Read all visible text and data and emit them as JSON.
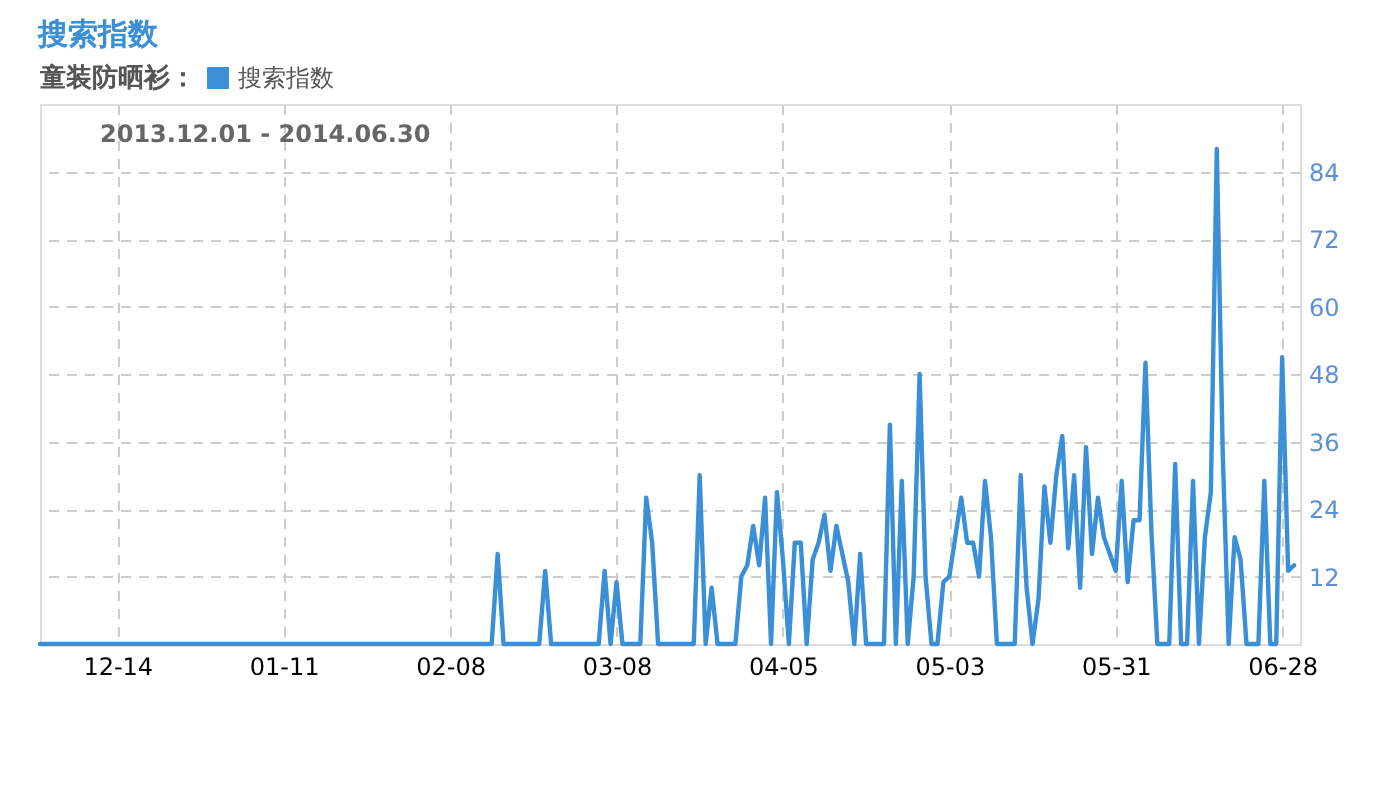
{
  "chart_data": {
    "type": "line",
    "title": "搜索指数",
    "legend_title": "童装防晒衫：",
    "legend": "top left",
    "annotations": [
      "2013.12.01 - 2014.06.30"
    ],
    "x": [
      "2013-12-01",
      "2014-02-15",
      "2014-02-16",
      "2014-02-17",
      "2014-02-23",
      "2014-02-24",
      "2014-02-25",
      "2014-03-05",
      "2014-03-06",
      "2014-03-07",
      "2014-03-08",
      "2014-03-09",
      "2014-03-12",
      "2014-03-13",
      "2014-03-14",
      "2014-03-15",
      "2014-03-21",
      "2014-03-22",
      "2014-03-23",
      "2014-03-24",
      "2014-03-25",
      "2014-03-28",
      "2014-03-29",
      "2014-03-30",
      "2014-03-31",
      "2014-04-01",
      "2014-04-02",
      "2014-04-03",
      "2014-04-04",
      "2014-04-05",
      "2014-04-06",
      "2014-04-07",
      "2014-04-08",
      "2014-04-09",
      "2014-04-10",
      "2014-04-11",
      "2014-04-12",
      "2014-04-13",
      "2014-04-14",
      "2014-04-15",
      "2014-04-16",
      "2014-04-17",
      "2014-04-18",
      "2014-04-19",
      "2014-04-22",
      "2014-04-23",
      "2014-04-24",
      "2014-04-25",
      "2014-04-26",
      "2014-04-27",
      "2014-04-28",
      "2014-04-29",
      "2014-04-30",
      "2014-05-01",
      "2014-05-02",
      "2014-05-03",
      "2014-05-04",
      "2014-05-05",
      "2014-05-06",
      "2014-05-07",
      "2014-05-08",
      "2014-05-09",
      "2014-05-10",
      "2014-05-11",
      "2014-05-14",
      "2014-05-15",
      "2014-05-16",
      "2014-05-17",
      "2014-05-18",
      "2014-05-19",
      "2014-05-20",
      "2014-05-21",
      "2014-05-22",
      "2014-05-23",
      "2014-05-24",
      "2014-05-25",
      "2014-05-26",
      "2014-05-27",
      "2014-05-28",
      "2014-05-29",
      "2014-05-30",
      "2014-05-31",
      "2014-06-01",
      "2014-06-02",
      "2014-06-03",
      "2014-06-04",
      "2014-06-05",
      "2014-06-06",
      "2014-06-07",
      "2014-06-09",
      "2014-06-10",
      "2014-06-11",
      "2014-06-12",
      "2014-06-13",
      "2014-06-14",
      "2014-06-15",
      "2014-06-16",
      "2014-06-17",
      "2014-06-18",
      "2014-06-19",
      "2014-06-20",
      "2014-06-21",
      "2014-06-22",
      "2014-06-24",
      "2014-06-25",
      "2014-06-26",
      "2014-06-27",
      "2014-06-28",
      "2014-06-29",
      "2014-06-30"
    ],
    "series": [
      {
        "name": "搜索指数",
        "color": "#3a8fd6",
        "values": [
          0,
          0,
          16,
          0,
          0,
          13,
          0,
          0,
          13,
          0,
          11,
          0,
          0,
          26,
          18,
          0,
          0,
          30,
          0,
          10,
          0,
          0,
          12,
          14,
          21,
          14,
          26,
          0,
          27,
          15,
          0,
          18,
          18,
          0,
          15,
          18,
          23,
          13,
          21,
          16,
          11,
          0,
          16,
          0,
          0,
          39,
          0,
          29,
          0,
          12,
          48,
          12,
          0,
          0,
          11,
          12,
          19,
          26,
          18,
          18,
          12,
          29,
          19,
          0,
          0,
          30,
          10,
          0,
          8,
          28,
          18,
          30,
          37,
          17,
          30,
          10,
          35,
          16,
          26,
          19,
          16,
          13,
          29,
          11,
          22,
          22,
          50,
          20,
          0,
          0,
          32,
          0,
          0,
          29,
          0,
          19,
          27,
          88,
          34,
          0,
          19,
          15,
          0,
          0,
          29,
          0,
          0,
          51,
          13,
          14
        ]
      }
    ],
    "xlim": [
      "2013-12-01",
      "2014-07-01"
    ],
    "ylim": [
      0,
      96
    ],
    "xticks": [
      {
        "value": "2013-12-14",
        "label": "12-14"
      },
      {
        "value": "2014-01-11",
        "label": "01-11"
      },
      {
        "value": "2014-02-08",
        "label": "02-08"
      },
      {
        "value": "2014-03-08",
        "label": "03-08"
      },
      {
        "value": "2014-04-05",
        "label": "04-05"
      },
      {
        "value": "2014-05-03",
        "label": "05-03"
      },
      {
        "value": "2014-05-31",
        "label": "05-31"
      },
      {
        "value": "2014-06-28",
        "label": "06-28"
      }
    ],
    "yticks": [
      12,
      24,
      36,
      48,
      60,
      72,
      84
    ],
    "grid": true,
    "marker": "none",
    "line_style": "solid"
  }
}
